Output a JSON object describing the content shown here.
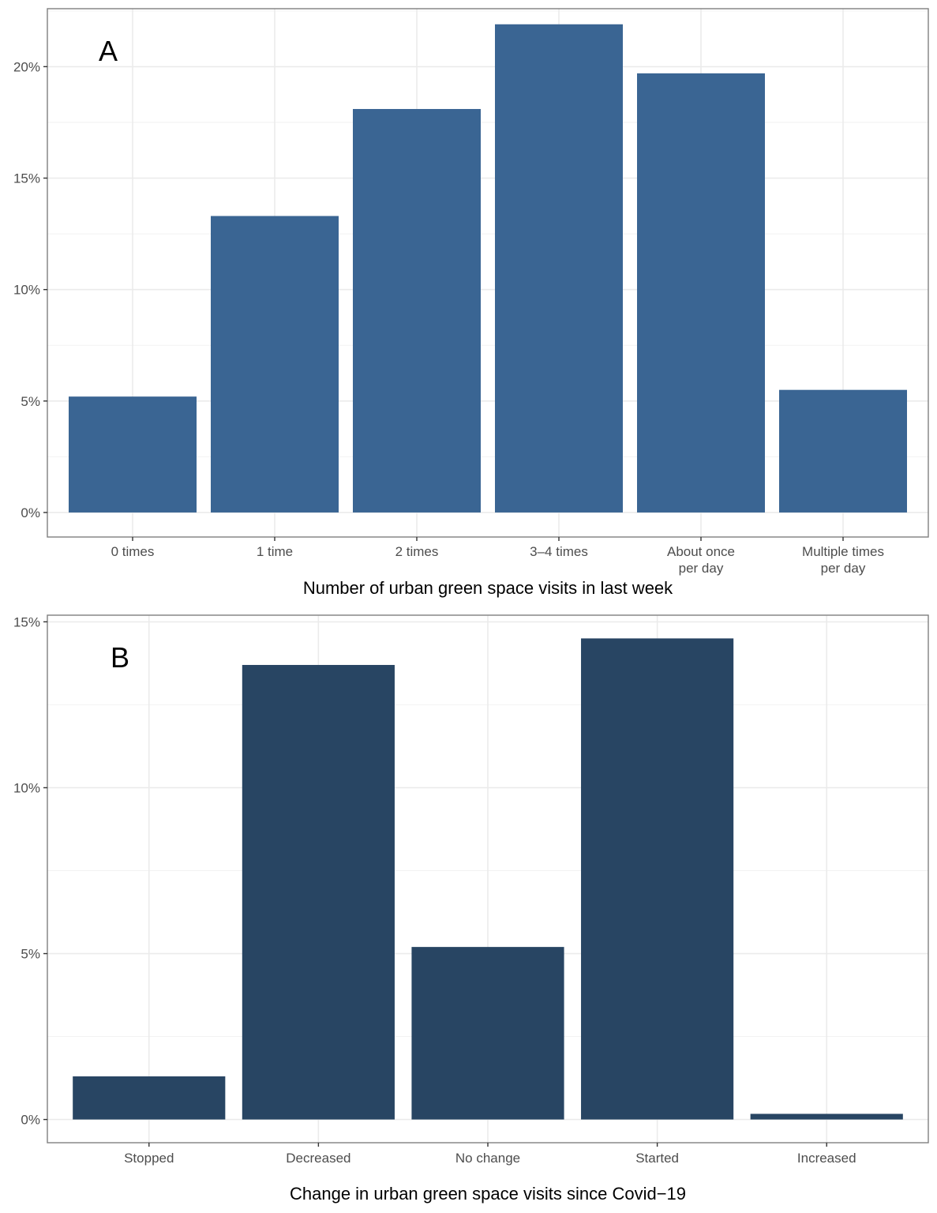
{
  "chart_data": [
    {
      "panel": "A",
      "type": "bar",
      "title": "",
      "xlabel": "Number of urban green space visits in last week",
      "ylabel": "",
      "categories": [
        [
          "0 times"
        ],
        [
          "1 time"
        ],
        [
          "2 times"
        ],
        [
          "3–4 times"
        ],
        [
          "About once",
          "per day"
        ],
        [
          "Multiple times",
          "per day"
        ]
      ],
      "values": [
        5.2,
        13.3,
        18.1,
        21.9,
        19.7,
        5.5
      ],
      "unit": "%",
      "yticks": [
        0,
        5,
        10,
        15,
        20
      ],
      "ytick_labels": [
        "0%",
        "5%",
        "10%",
        "15%",
        "20%"
      ],
      "ylim": [
        -1.1,
        22.6
      ],
      "grid": true,
      "bar_color": "#3a6593"
    },
    {
      "panel": "B",
      "type": "bar",
      "title": "",
      "xlabel": "Change in urban green space visits since Covid−19",
      "ylabel": "",
      "categories": [
        [
          "Stopped"
        ],
        [
          "Decreased"
        ],
        [
          "No change"
        ],
        [
          "Started"
        ],
        [
          "Increased"
        ]
      ],
      "values": [
        1.3,
        13.7,
        5.2,
        14.5,
        0.17
      ],
      "unit": "%",
      "yticks": [
        0,
        5,
        10,
        15
      ],
      "ytick_labels": [
        "0%",
        "5%",
        "10%",
        "15%"
      ],
      "ylim": [
        -0.7,
        15.2
      ],
      "grid": true,
      "bar_color": "#284563"
    }
  ]
}
